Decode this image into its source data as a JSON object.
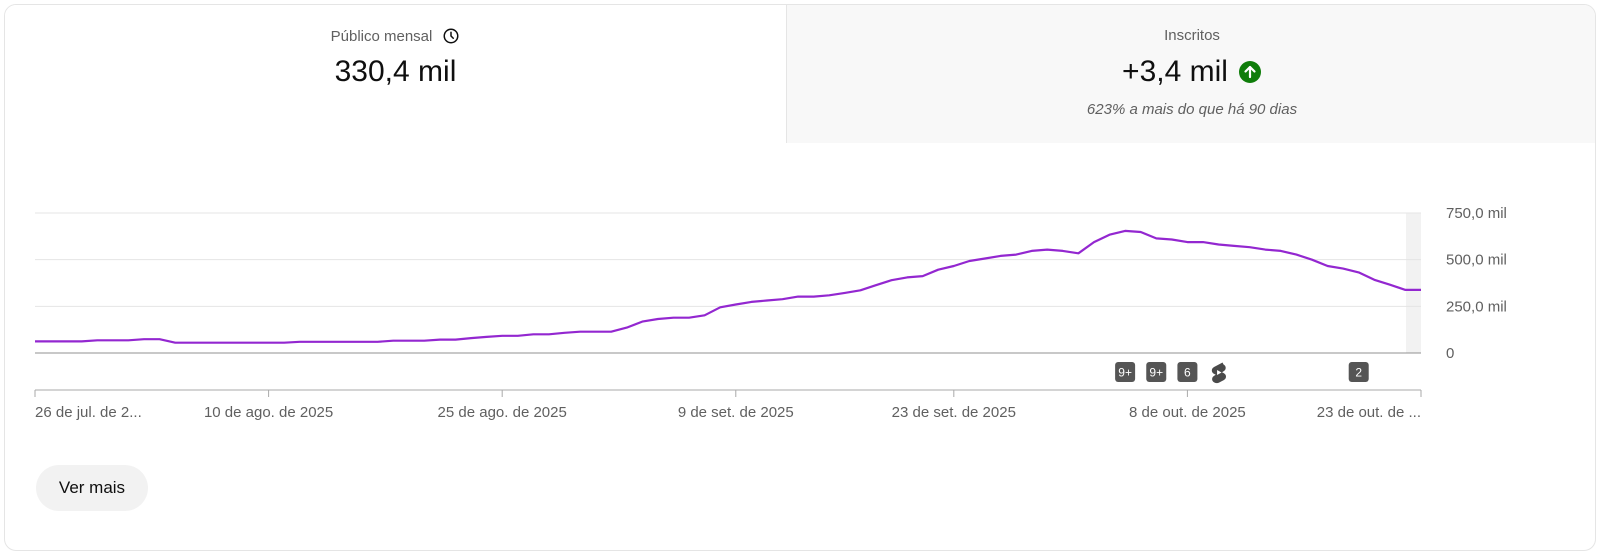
{
  "tabs": {
    "left": {
      "label": "Público mensal",
      "value": "330,4 mil",
      "icon": "clock-icon"
    },
    "right": {
      "label": "Inscritos",
      "value": "+3,4 mil",
      "subtitle": "623% a mais do que há 90 dias",
      "icon": "arrow-up-icon",
      "icon_color": "#0f7d0a"
    }
  },
  "colors": {
    "line": "#9327d0",
    "grid": "#e5e5e5",
    "axis": "#909090",
    "marker_bg": "#555555"
  },
  "chart_data": {
    "type": "line",
    "x_tick_labels": [
      "26 de jul. de 2...",
      "10 de ago. de 2025",
      "25 de ago. de 2025",
      "9 de set. de 2025",
      "23 de set. de 2025",
      "8 de out. de 2025",
      "23 de out. de ..."
    ],
    "x_tick_days": [
      0,
      15,
      30,
      45,
      59,
      74,
      89
    ],
    "y_tick_labels": [
      "0",
      "250,0 mil",
      "500,0 mil",
      "750,0 mil"
    ],
    "y_ticks": [
      0,
      250000,
      500000,
      750000
    ],
    "ylim": [
      0,
      750000
    ],
    "xlim_days": [
      0,
      89
    ],
    "grid": true,
    "series": [
      {
        "points": [
          [
            0,
            62000
          ],
          [
            1,
            62000
          ],
          [
            2,
            62000
          ],
          [
            3,
            62000
          ],
          [
            4,
            68000
          ],
          [
            5,
            68000
          ],
          [
            6,
            68000
          ],
          [
            7,
            74000
          ],
          [
            8,
            74000
          ],
          [
            9,
            55000
          ],
          [
            10,
            55000
          ],
          [
            11,
            55000
          ],
          [
            12,
            55000
          ],
          [
            13,
            55000
          ],
          [
            14,
            55000
          ],
          [
            15,
            55000
          ],
          [
            16,
            55000
          ],
          [
            17,
            60000
          ],
          [
            18,
            60000
          ],
          [
            19,
            60000
          ],
          [
            20,
            60000
          ],
          [
            21,
            60000
          ],
          [
            22,
            60000
          ],
          [
            23,
            66000
          ],
          [
            24,
            66000
          ],
          [
            25,
            66000
          ],
          [
            26,
            72000
          ],
          [
            27,
            72000
          ],
          [
            28,
            80000
          ],
          [
            29,
            86000
          ],
          [
            30,
            92000
          ],
          [
            31,
            92000
          ],
          [
            32,
            100000
          ],
          [
            33,
            100000
          ],
          [
            34,
            108000
          ],
          [
            35,
            114000
          ],
          [
            36,
            114000
          ],
          [
            37,
            114000
          ],
          [
            38,
            136000
          ],
          [
            39,
            168000
          ],
          [
            40,
            182000
          ],
          [
            41,
            189000
          ],
          [
            42,
            189000
          ],
          [
            43,
            202000
          ],
          [
            44,
            245000
          ],
          [
            45,
            260000
          ],
          [
            46,
            274000
          ],
          [
            47,
            281000
          ],
          [
            48,
            288000
          ],
          [
            49,
            302000
          ],
          [
            50,
            302000
          ],
          [
            51,
            309000
          ],
          [
            52,
            322000
          ],
          [
            53,
            336000
          ],
          [
            54,
            363000
          ],
          [
            55,
            390000
          ],
          [
            56,
            405000
          ],
          [
            57,
            412000
          ],
          [
            58,
            446000
          ],
          [
            59,
            466000
          ],
          [
            60,
            493000
          ],
          [
            61,
            506000
          ],
          [
            62,
            520000
          ],
          [
            63,
            527000
          ],
          [
            64,
            547000
          ],
          [
            65,
            554000
          ],
          [
            66,
            547000
          ],
          [
            67,
            534000
          ],
          [
            68,
            594000
          ],
          [
            69,
            634000
          ],
          [
            70,
            654000
          ],
          [
            71,
            648000
          ],
          [
            72,
            614000
          ],
          [
            73,
            608000
          ],
          [
            74,
            594000
          ],
          [
            75,
            594000
          ],
          [
            76,
            581000
          ],
          [
            77,
            574000
          ],
          [
            78,
            567000
          ],
          [
            79,
            554000
          ],
          [
            80,
            547000
          ],
          [
            81,
            527000
          ],
          [
            82,
            500000
          ],
          [
            83,
            466000
          ],
          [
            84,
            452000
          ],
          [
            85,
            432000
          ],
          [
            86,
            392000
          ],
          [
            87,
            366000
          ],
          [
            88,
            338000
          ],
          [
            89,
            338000
          ]
        ]
      }
    ],
    "markers": [
      {
        "day": 70,
        "label": "9+",
        "icon": ""
      },
      {
        "day": 72,
        "label": "9+",
        "icon": ""
      },
      {
        "day": 74,
        "label": "6",
        "icon": ""
      },
      {
        "day": 76,
        "label": "",
        "icon": "shorts-icon"
      },
      {
        "day": 85,
        "label": "2",
        "icon": ""
      }
    ]
  },
  "actions": {
    "more_label": "Ver mais"
  }
}
